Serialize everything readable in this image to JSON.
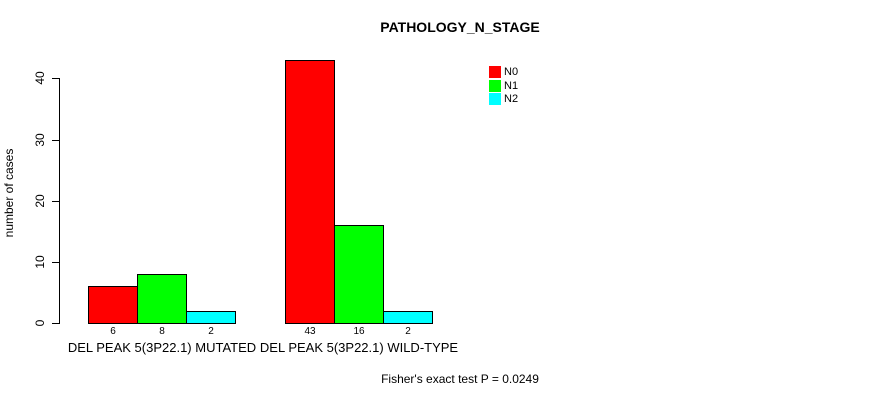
{
  "chart_data": {
    "type": "bar",
    "title": "PATHOLOGY_N_STAGE",
    "xlabel": "",
    "ylabel": "number of cases",
    "categories": [
      "DEL PEAK 5(3P22.1) MUTATED",
      "DEL PEAK 5(3P22.1) WILD-TYPE"
    ],
    "series": [
      {
        "name": "N0",
        "color": "#ff0000",
        "values": [
          6,
          43
        ]
      },
      {
        "name": "N1",
        "color": "#00ff00",
        "values": [
          8,
          16
        ]
      },
      {
        "name": "N2",
        "color": "#00ffff",
        "values": [
          2,
          2
        ]
      }
    ],
    "bar_value_labels": [
      [
        "6",
        "8",
        "2"
      ],
      [
        "43",
        "16",
        "2"
      ]
    ],
    "yticks": [
      "0",
      "10",
      "20",
      "30",
      "40"
    ],
    "ytick_values": [
      0,
      10,
      20,
      30,
      40
    ],
    "ylim": [
      0,
      43
    ],
    "grid": false,
    "legend_position": "top-right",
    "legend_entries": [
      {
        "label": "N0",
        "color": "#ff0000"
      },
      {
        "label": "N1",
        "color": "#00ff00"
      },
      {
        "label": "N2",
        "color": "#00ffff"
      }
    ],
    "annotation": "Fisher's exact test P = 0.0249"
  }
}
